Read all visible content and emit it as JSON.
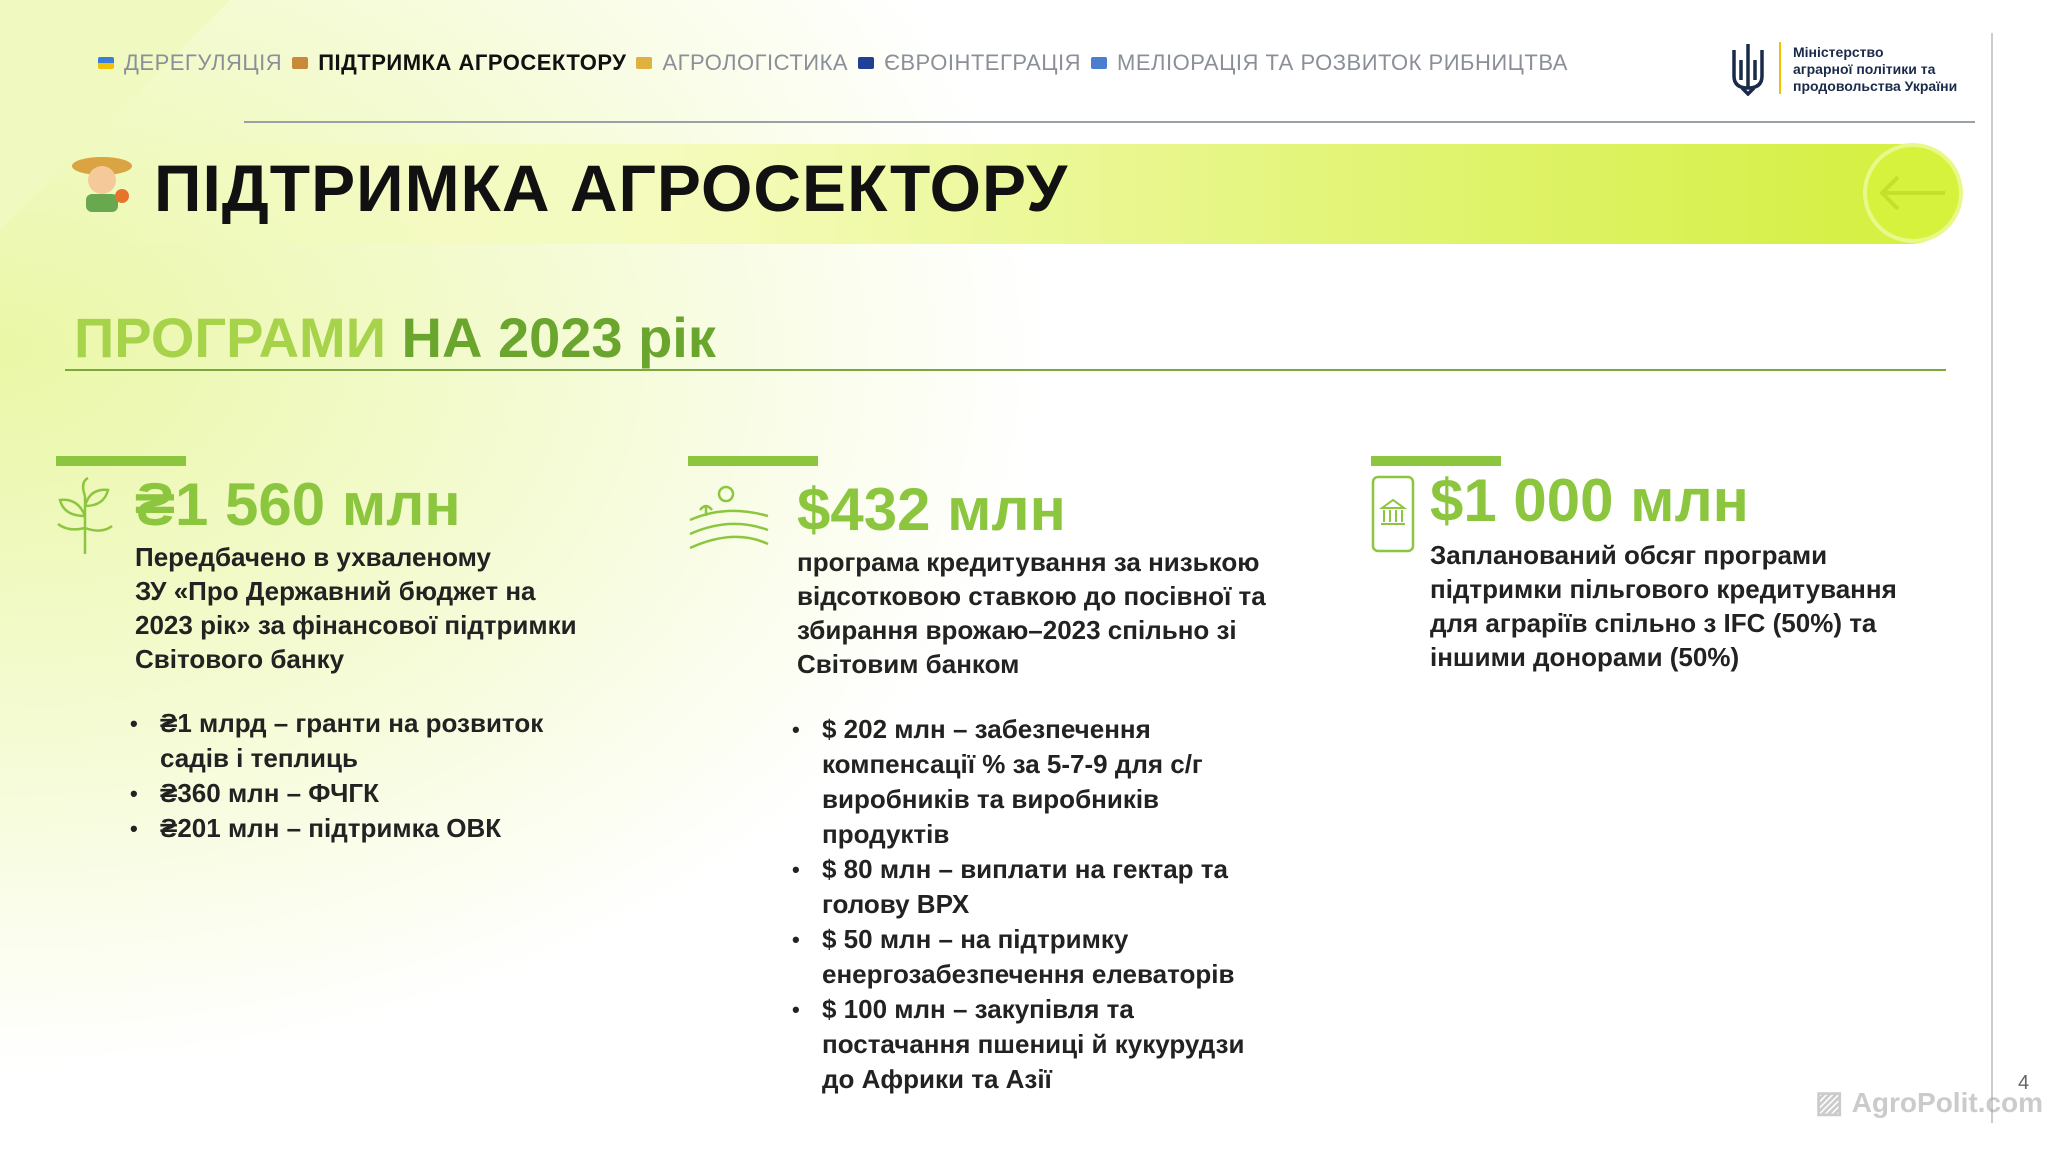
{
  "nav": {
    "items": [
      "ДЕРЕГУЛЯЦІЯ",
      "ПІДТРИМКА АГРОСЕКТОРУ",
      "АГРОЛОГІСТИКА",
      "ЄВРОІНТЕГРАЦІЯ",
      "МЕЛІОРАЦІЯ ТА РОЗВИТОК РИБНИЦТВА"
    ],
    "active": 1
  },
  "logo": {
    "lines": [
      "Міністерство",
      "аграрної політики та",
      "продовольства України"
    ]
  },
  "header": {
    "title": "ПІДТРИМКА АГРОСЕКТОРУ"
  },
  "subtitle": {
    "part1": "ПРОГРАМИ",
    "part2": "НА 2023 рік"
  },
  "columns": [
    {
      "amount": "₴1 560 млн",
      "description": [
        "Передбачено в ухваленому",
        "ЗУ «Про Державний бюджет на",
        "2023 рік» за фінансової підтримки",
        "Світового банку"
      ],
      "bullets": [
        [
          "₴1 млрд – гранти на розвиток",
          "садів і теплиць"
        ],
        [
          "₴360 млн – ФЧГК"
        ],
        [
          "₴201 млн – підтримка ОВК"
        ]
      ]
    },
    {
      "amount": "$432 млн",
      "description": [
        "програма кредитування за низькою",
        "відсотковою ставкою до посівної та",
        "збирання врожаю–2023 спільно зі",
        "Світовим банком"
      ],
      "bullets": [
        [
          "$ 202 млн – забезпечення",
          "компенсації % за 5-7-9 для с/г",
          "виробників та виробників",
          "продуктів"
        ],
        [
          "$ 80 млн – виплати на гектар та",
          "голову ВРХ"
        ],
        [
          "$ 50 млн – на підтримку",
          "енергозабезпечення елеваторів"
        ],
        [
          "$ 100 млн – закупівля та",
          "постачання пшениці й кукурудзи",
          "до Африки та Азії"
        ]
      ]
    },
    {
      "amount": "$1 000 млн",
      "description": [
        "Запланований обсяг програми",
        "підтримки пільгового кредитування",
        "для аграріїв спільно з IFC (50%) та",
        "іншими донорами (50%)"
      ],
      "bullets": []
    }
  ],
  "page_number": "4",
  "watermark": "AgroPolit.com"
}
